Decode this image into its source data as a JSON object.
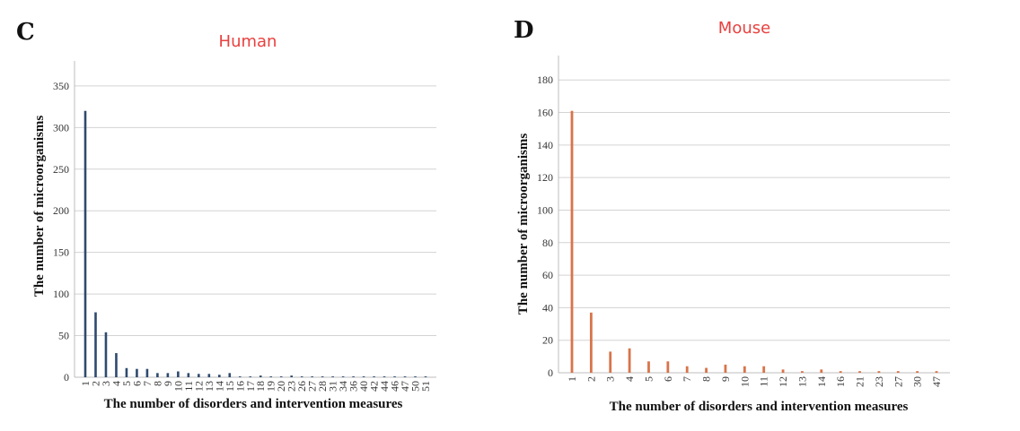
{
  "chart_data": [
    {
      "panel": "C",
      "type": "bar",
      "title": "Human",
      "title_color": "#e8413f",
      "bar_color": "#2e4a6e",
      "xlabel": "The number of disorders and intervention measures",
      "ylabel": "The number of microorganisms",
      "ylim": [
        0,
        380
      ],
      "yticks": [
        0,
        50,
        100,
        150,
        200,
        250,
        300,
        350
      ],
      "grid": true,
      "categories": [
        "1",
        "2",
        "3",
        "4",
        "5",
        "6",
        "7",
        "8",
        "9",
        "10",
        "11",
        "12",
        "13",
        "14",
        "15",
        "16",
        "17",
        "18",
        "19",
        "20",
        "23",
        "26",
        "27",
        "28",
        "31",
        "34",
        "36",
        "40",
        "42",
        "44",
        "46",
        "47",
        "50",
        "51"
      ],
      "values": [
        320,
        78,
        54,
        29,
        11,
        10,
        10,
        5,
        5,
        7,
        5,
        4,
        4,
        3,
        5,
        1,
        1,
        2,
        1,
        1,
        2,
        1,
        1,
        1,
        1,
        1,
        1,
        1,
        1,
        1,
        1,
        1,
        1,
        1
      ]
    },
    {
      "panel": "D",
      "type": "bar",
      "title": "Mouse",
      "title_color": "#e8413f",
      "bar_color": "#d8744a",
      "xlabel": "The number of disorders and intervention measures",
      "ylabel": "The number of microorganisms",
      "ylim": [
        0,
        195
      ],
      "yticks": [
        0,
        20,
        40,
        60,
        80,
        100,
        120,
        140,
        160,
        180
      ],
      "grid": true,
      "categories": [
        "1",
        "2",
        "3",
        "4",
        "5",
        "6",
        "7",
        "8",
        "9",
        "10",
        "11",
        "12",
        "13",
        "14",
        "16",
        "21",
        "23",
        "27",
        "30",
        "47"
      ],
      "values": [
        161,
        37,
        13,
        15,
        7,
        7,
        4,
        3,
        5,
        4,
        4,
        2,
        1,
        2,
        1,
        1,
        1,
        1,
        1,
        1
      ]
    }
  ]
}
